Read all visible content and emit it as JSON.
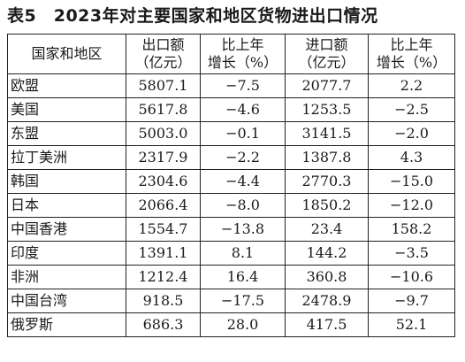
{
  "title": "表5　2023年对主要国家和地区货物进出口情况",
  "table": {
    "headers": {
      "region": "国家和地区",
      "export_line1": "出口额",
      "export_line2": "（亿元）",
      "export_growth_line1": "比上年",
      "export_growth_line2": "增长（%）",
      "import_line1": "进口额",
      "import_line2": "（亿元）",
      "import_growth_line1": "比上年",
      "import_growth_line2": "增长（%）"
    },
    "rows": [
      {
        "region": "欧盟",
        "export": "5807.1",
        "export_growth": "−7.5",
        "import": "2077.7",
        "import_growth": "2.2"
      },
      {
        "region": "美国",
        "export": "5617.8",
        "export_growth": "−4.6",
        "import": "1253.5",
        "import_growth": "−2.5"
      },
      {
        "region": "东盟",
        "export": "5003.0",
        "export_growth": "−0.1",
        "import": "3141.5",
        "import_growth": "−2.0"
      },
      {
        "region": "拉丁美洲",
        "export": "2317.9",
        "export_growth": "−2.2",
        "import": "1387.8",
        "import_growth": "4.3"
      },
      {
        "region": "韩国",
        "export": "2304.6",
        "export_growth": "−4.4",
        "import": "2770.3",
        "import_growth": "−15.0"
      },
      {
        "region": "日本",
        "export": "2066.4",
        "export_growth": "−8.0",
        "import": "1850.2",
        "import_growth": "−12.0"
      },
      {
        "region": "中国香港",
        "export": "1554.7",
        "export_growth": "−13.8",
        "import": "23.4",
        "import_growth": "158.2"
      },
      {
        "region": "印度",
        "export": "1391.1",
        "export_growth": "8.1",
        "import": "144.2",
        "import_growth": "−3.5"
      },
      {
        "region": "非洲",
        "export": "1212.4",
        "export_growth": "16.4",
        "import": "360.8",
        "import_growth": "−10.6"
      },
      {
        "region": "中国台湾",
        "export": "918.5",
        "export_growth": "−17.5",
        "import": "2478.9",
        "import_growth": "−9.7"
      },
      {
        "region": "俄罗斯",
        "export": "686.3",
        "export_growth": "28.0",
        "import": "417.5",
        "import_growth": "52.1"
      }
    ]
  }
}
